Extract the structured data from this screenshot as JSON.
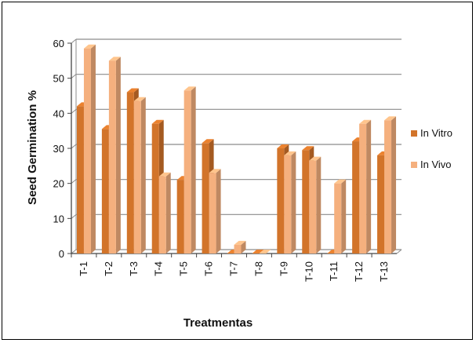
{
  "chart_data": {
    "type": "bar",
    "categories": [
      "T-1",
      "T-2",
      "T-3",
      "T-4",
      "T-5",
      "T-6",
      "T-7",
      "T-8",
      "T-9",
      "T-10",
      "T-11",
      "T-12",
      "T-13"
    ],
    "series": [
      {
        "name": "In Vitro",
        "color": "#D2742A",
        "values": [
          42,
          35.5,
          46,
          37,
          21,
          31.5,
          0,
          0,
          30,
          29.5,
          0,
          32,
          28
        ]
      },
      {
        "name": "In Vivo",
        "color": "#F5B07E",
        "values": [
          58.5,
          55,
          43.5,
          22,
          46.5,
          23,
          2.5,
          0,
          28,
          26.5,
          20,
          37,
          38
        ]
      }
    ],
    "title": "",
    "xlabel": "Treatmentas",
    "ylabel": "Seed Germination %",
    "ylim": [
      0,
      60
    ],
    "yticks": [
      0,
      10,
      20,
      30,
      40,
      50,
      60
    ],
    "grid": true,
    "legend": "right"
  }
}
